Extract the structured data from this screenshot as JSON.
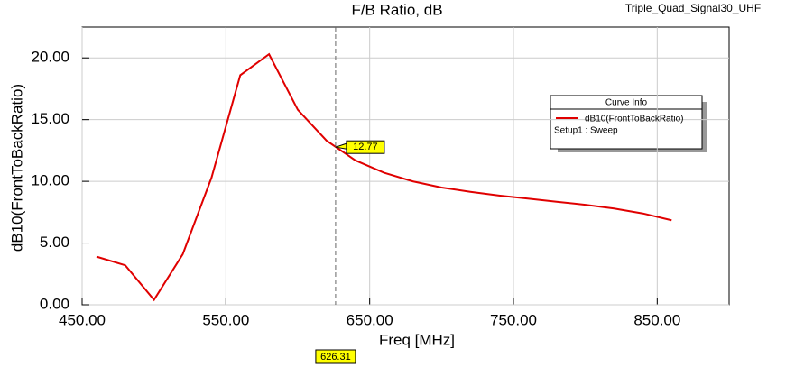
{
  "chart_data": {
    "type": "line",
    "title": "F/B Ratio, dB",
    "project": "Triple_Quad_Signal30_UHF",
    "x_label": "Freq [MHz]",
    "y_label": "dB10(FrontToBackRatio)",
    "x": [
      460,
      480,
      500,
      520,
      540,
      560,
      580,
      600,
      620,
      640,
      660,
      680,
      700,
      720,
      740,
      760,
      780,
      800,
      820,
      840,
      860
    ],
    "series": [
      {
        "name": "dB10(FrontToBackRatio)",
        "color": "#e00000",
        "values": [
          3.9,
          3.2,
          0.4,
          4.1,
          10.3,
          18.6,
          20.3,
          15.8,
          13.3,
          11.7,
          10.7,
          10.0,
          9.5,
          9.15,
          8.85,
          8.6,
          8.35,
          8.1,
          7.8,
          7.4,
          6.85
        ]
      }
    ],
    "legend_title": "Curve Info",
    "legend_note": "Setup1 : Sweep",
    "xlim": [
      450,
      900
    ],
    "ylim": [
      0,
      22.5
    ],
    "xticks": [
      {
        "value": 450,
        "label": "450.00"
      },
      {
        "value": 550,
        "label": "550.00"
      },
      {
        "value": 650,
        "label": "650.00"
      },
      {
        "value": 750,
        "label": "750.00"
      },
      {
        "value": 850,
        "label": "850.00"
      }
    ],
    "yticks": [
      {
        "value": 0,
        "label": "0.00"
      },
      {
        "value": 5,
        "label": "5.00"
      },
      {
        "value": 10,
        "label": "10.00"
      },
      {
        "value": 15,
        "label": "15.00"
      },
      {
        "value": 20,
        "label": "20.00"
      }
    ],
    "marker": {
      "x": 626.31,
      "y": 12.77
    },
    "grid": true
  }
}
